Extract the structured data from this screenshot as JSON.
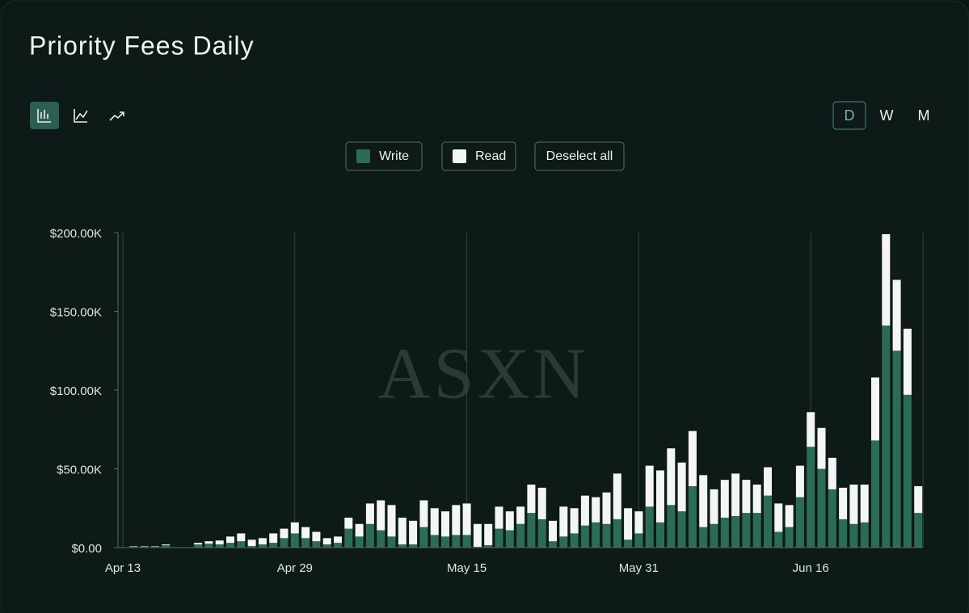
{
  "chart_data": {
    "type": "stacked_bar",
    "title": "Priority Fees Daily",
    "categories": [
      "Apr 13",
      null,
      null,
      null,
      null,
      null,
      null,
      null,
      null,
      null,
      null,
      null,
      null,
      null,
      null,
      null,
      "Apr 29",
      null,
      null,
      null,
      null,
      null,
      null,
      null,
      null,
      null,
      null,
      null,
      null,
      null,
      null,
      null,
      "May 15",
      null,
      null,
      null,
      null,
      null,
      null,
      null,
      null,
      null,
      null,
      null,
      null,
      null,
      null,
      null,
      "May 31",
      null,
      null,
      null,
      null,
      null,
      null,
      null,
      null,
      null,
      null,
      null,
      null,
      null,
      null,
      null,
      "Jun 16",
      null,
      null,
      null,
      null,
      null,
      null,
      null,
      null,
      null,
      null
    ],
    "series": [
      {
        "name": "Write",
        "color": "#2c6b58",
        "values": [
          0,
          800,
          800,
          800,
          1500,
          300,
          300,
          2000,
          2500,
          2000,
          3000,
          4000,
          1000,
          2000,
          3000,
          6000,
          9000,
          6000,
          4000,
          2000,
          3000,
          12000,
          7000,
          15000,
          11000,
          7000,
          2000,
          2000,
          13000,
          8000,
          7000,
          8000,
          8000,
          500,
          1500,
          12000,
          11000,
          15000,
          22000,
          18000,
          4000,
          7000,
          9000,
          14000,
          16000,
          15000,
          18000,
          5000,
          9000,
          26000,
          16000,
          27000,
          23000,
          39000,
          13000,
          15000,
          19000,
          20000,
          22000,
          22000,
          33000,
          10000,
          13000,
          32000,
          64000,
          50000,
          37000,
          18000,
          15000,
          16000,
          68000,
          141000,
          125000,
          97000,
          22000
        ]
      },
      {
        "name": "Read",
        "color": "#f4f6f5",
        "values": [
          0,
          200,
          200,
          200,
          500,
          0,
          0,
          1000,
          1500,
          2500,
          4000,
          5000,
          4000,
          4000,
          6000,
          6000,
          7000,
          7000,
          6000,
          4000,
          4000,
          7000,
          8000,
          13000,
          19000,
          20000,
          17000,
          15000,
          17000,
          17000,
          16000,
          19000,
          20000,
          14500,
          13500,
          14000,
          12000,
          11000,
          18000,
          20000,
          13000,
          19000,
          16000,
          19000,
          16000,
          20000,
          29000,
          20000,
          14000,
          26000,
          33000,
          36000,
          31000,
          35000,
          33000,
          22000,
          24000,
          27000,
          21000,
          18000,
          18000,
          18000,
          14000,
          20000,
          22000,
          26000,
          20000,
          20000,
          25000,
          24000,
          40000,
          58000,
          45000,
          42000,
          17000
        ]
      }
    ],
    "ylim": [
      0,
      200000
    ],
    "yticks": [
      {
        "value": 0,
        "label": "$0.00"
      },
      {
        "value": 50000,
        "label": "$50.00K"
      },
      {
        "value": 100000,
        "label": "$100.00K"
      },
      {
        "value": 150000,
        "label": "$150.00K"
      },
      {
        "value": 200000,
        "label": "$200.00K"
      }
    ],
    "grid": "x"
  },
  "ui": {
    "periods": [
      "D",
      "W",
      "M"
    ],
    "selected_period": "D",
    "deselect_label": "Deselect all",
    "watermark": "ASXN"
  }
}
